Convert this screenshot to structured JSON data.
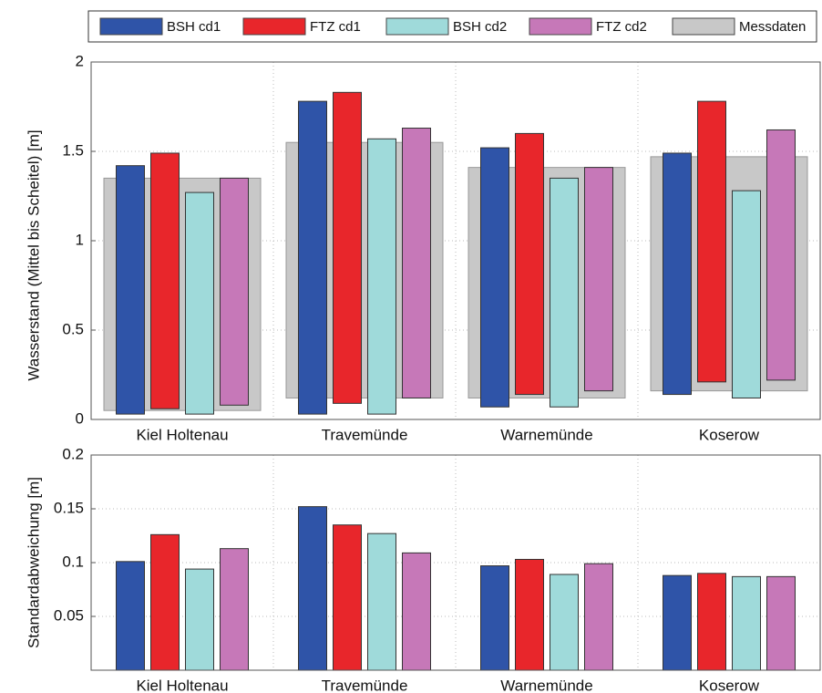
{
  "chart_data": [
    {
      "type": "rangebar",
      "y_label": "Wasserstand (Mittel bis Scheitel) [m]",
      "categories": [
        "Kiel Holtenau",
        "Travemünde",
        "Warnemünde",
        "Koserow"
      ],
      "series": [
        {
          "name": "BSH cd1",
          "color": "#2f54a8",
          "low": [
            0.03,
            0.03,
            0.07,
            0.14
          ],
          "high": [
            1.42,
            1.78,
            1.52,
            1.49
          ]
        },
        {
          "name": "FTZ cd1",
          "color": "#e8262b",
          "low": [
            0.06,
            0.09,
            0.14,
            0.21
          ],
          "high": [
            1.49,
            1.83,
            1.6,
            1.78
          ]
        },
        {
          "name": "BSH cd2",
          "color": "#9fdada",
          "low": [
            0.03,
            0.03,
            0.07,
            0.12
          ],
          "high": [
            1.27,
            1.57,
            1.35,
            1.28
          ]
        },
        {
          "name": "FTZ cd2",
          "color": "#c678b8",
          "low": [
            0.08,
            0.12,
            0.16,
            0.22
          ],
          "high": [
            1.35,
            1.63,
            1.41,
            1.62
          ]
        },
        {
          "name": "Messdaten",
          "color": "#c8c8c8",
          "background": true,
          "low": [
            0.05,
            0.12,
            0.12,
            0.16
          ],
          "high": [
            1.35,
            1.55,
            1.41,
            1.47
          ]
        }
      ],
      "ylim": [
        0,
        2
      ],
      "yticks": [
        0,
        0.5,
        1,
        1.5,
        2
      ],
      "grid": true
    },
    {
      "type": "bar",
      "y_label": "Standardabweichung [m]",
      "categories": [
        "Kiel Holtenau",
        "Travemünde",
        "Warnemünde",
        "Koserow"
      ],
      "series": [
        {
          "color": "#2f54a8",
          "values": [
            0.101,
            0.152,
            0.097,
            0.088
          ]
        },
        {
          "color": "#e8262b",
          "values": [
            0.126,
            0.135,
            0.103,
            0.09
          ]
        },
        {
          "color": "#9fdada",
          "values": [
            0.094,
            0.127,
            0.089,
            0.087
          ]
        },
        {
          "color": "#c678b8",
          "values": [
            0.113,
            0.109,
            0.099,
            0.087
          ]
        }
      ],
      "ylim": [
        0,
        0.2
      ],
      "yticks": [
        0.05,
        0.1,
        0.15,
        0.2
      ],
      "grid": true
    }
  ]
}
